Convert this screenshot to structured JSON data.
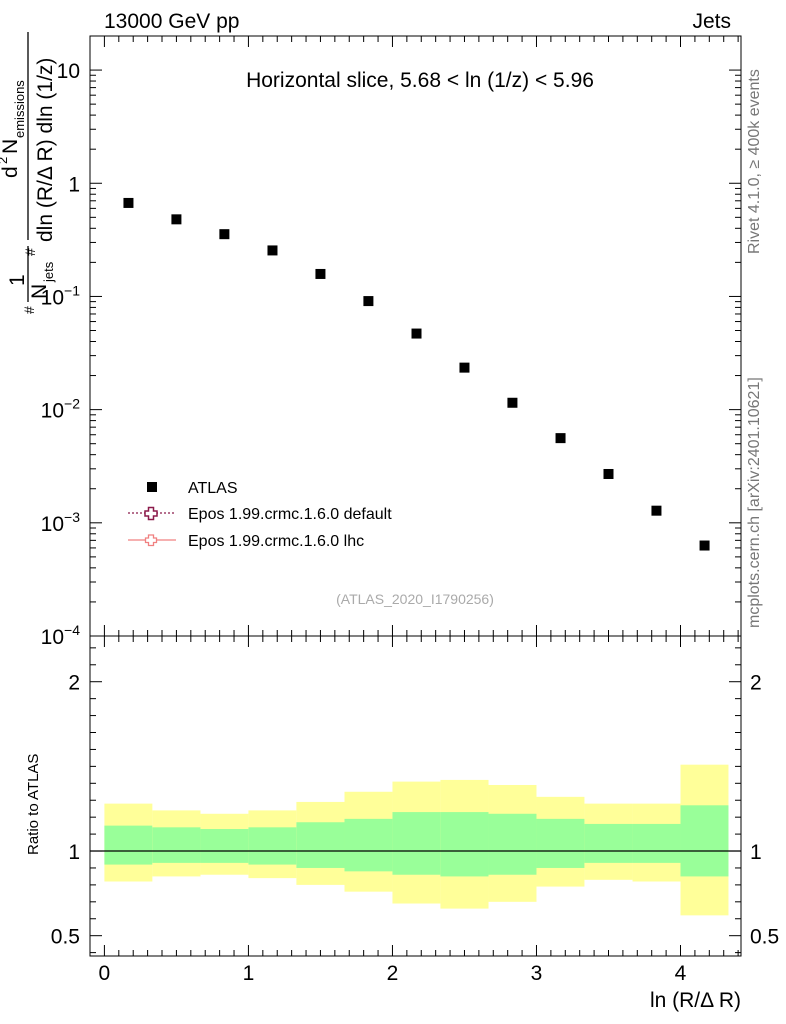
{
  "header": {
    "left": "13000 GeV pp",
    "right": "Jets"
  },
  "side_labels": {
    "rivet": "Rivet 4.1.0, ≥ 400k events",
    "mcplots": "mcplots.cern.ch [arXiv:2401.10621]"
  },
  "colors": {
    "yellow_band": "#ffff99",
    "green_band": "#99ff99",
    "epos_default": "#8b1a4a",
    "epos_lhc": "#f08080"
  },
  "chart_data": [
    {
      "id": "main",
      "type": "scatter",
      "title": "Horizontal slice, 5.68 < ln (1/z) < 5.96",
      "xlabel": "ln (R/Δ R)",
      "ylabel": "1/N_jets d²N_emissions / dln(R/ΔR) dln(1/z)",
      "ylabel_parts": {
        "one": "1",
        "njets": "N",
        "njets_sub": "jets",
        "hash_top": "#",
        "hash_bot": "#",
        "d2": "d",
        "d2_sup": "2",
        "n_emis": "N",
        "n_emis_sub": "emissions",
        "den": "dln (R/Δ R) dln (1/z)"
      },
      "yscale": "log",
      "ylim": [
        0.0001,
        20
      ],
      "xlim": [
        -0.1,
        4.42
      ],
      "ytick_labels": [
        {
          "value": 10,
          "base": "10",
          "exp": ""
        },
        {
          "value": 1,
          "base": "1",
          "exp": ""
        },
        {
          "value": 0.1,
          "base": "10",
          "exp": "−1"
        },
        {
          "value": 0.01,
          "base": "10",
          "exp": "−2"
        },
        {
          "value": 0.001,
          "base": "10",
          "exp": "−3"
        },
        {
          "value": 0.0001,
          "base": "10",
          "exp": "−4"
        }
      ],
      "series": [
        {
          "name": "ATLAS",
          "x": [
            0.167,
            0.5,
            0.833,
            1.167,
            1.5,
            1.833,
            2.167,
            2.5,
            2.833,
            3.167,
            3.5,
            3.833,
            4.167
          ],
          "y": [
            0.67,
            0.48,
            0.355,
            0.255,
            0.158,
            0.091,
            0.047,
            0.0235,
            0.0115,
            0.0056,
            0.0027,
            0.00128,
            0.00063
          ]
        }
      ],
      "legend": [
        {
          "label": "ATLAS",
          "marker": "square"
        },
        {
          "label": "Epos 1.99.crmc.1.6.0 default",
          "marker": "open-cross-dotted"
        },
        {
          "label": "Epos 1.99.crmc.1.6.0 lhc",
          "marker": "cross-solid"
        }
      ],
      "annotation": "(ATLAS_2020_I1790256)"
    },
    {
      "id": "ratio",
      "type": "area",
      "ylabel": "Ratio to ATLAS",
      "xlabel": "ln (R/Δ R)",
      "xlim": [
        -0.1,
        4.42
      ],
      "ylim": [
        0.38,
        2.27
      ],
      "ytick_labels": [
        {
          "value": 2,
          "label": "2"
        },
        {
          "value": 1,
          "label": "1"
        },
        {
          "value": 0.5,
          "label": "0.5"
        }
      ],
      "xtick_labels": [
        {
          "value": 0,
          "label": "0"
        },
        {
          "value": 1,
          "label": "1"
        },
        {
          "value": 2,
          "label": "2"
        },
        {
          "value": 3,
          "label": "3"
        },
        {
          "value": 4,
          "label": "4"
        }
      ],
      "bins": [
        0,
        0.333,
        0.667,
        1.0,
        1.333,
        1.667,
        2.0,
        2.333,
        2.667,
        3.0,
        3.333,
        3.667,
        4.0,
        4.333
      ],
      "green_upper": [
        1.15,
        1.14,
        1.13,
        1.14,
        1.17,
        1.19,
        1.23,
        1.23,
        1.22,
        1.19,
        1.16,
        1.16,
        1.27
      ],
      "green_lower": [
        0.92,
        0.93,
        0.93,
        0.92,
        0.9,
        0.88,
        0.86,
        0.85,
        0.86,
        0.9,
        0.93,
        0.93,
        0.85
      ],
      "yellow_upper": [
        1.28,
        1.24,
        1.22,
        1.24,
        1.29,
        1.35,
        1.41,
        1.42,
        1.39,
        1.32,
        1.28,
        1.28,
        1.51
      ],
      "yellow_lower": [
        0.82,
        0.85,
        0.86,
        0.84,
        0.8,
        0.76,
        0.69,
        0.66,
        0.7,
        0.79,
        0.83,
        0.82,
        0.62
      ],
      "reference_line": 1
    }
  ]
}
